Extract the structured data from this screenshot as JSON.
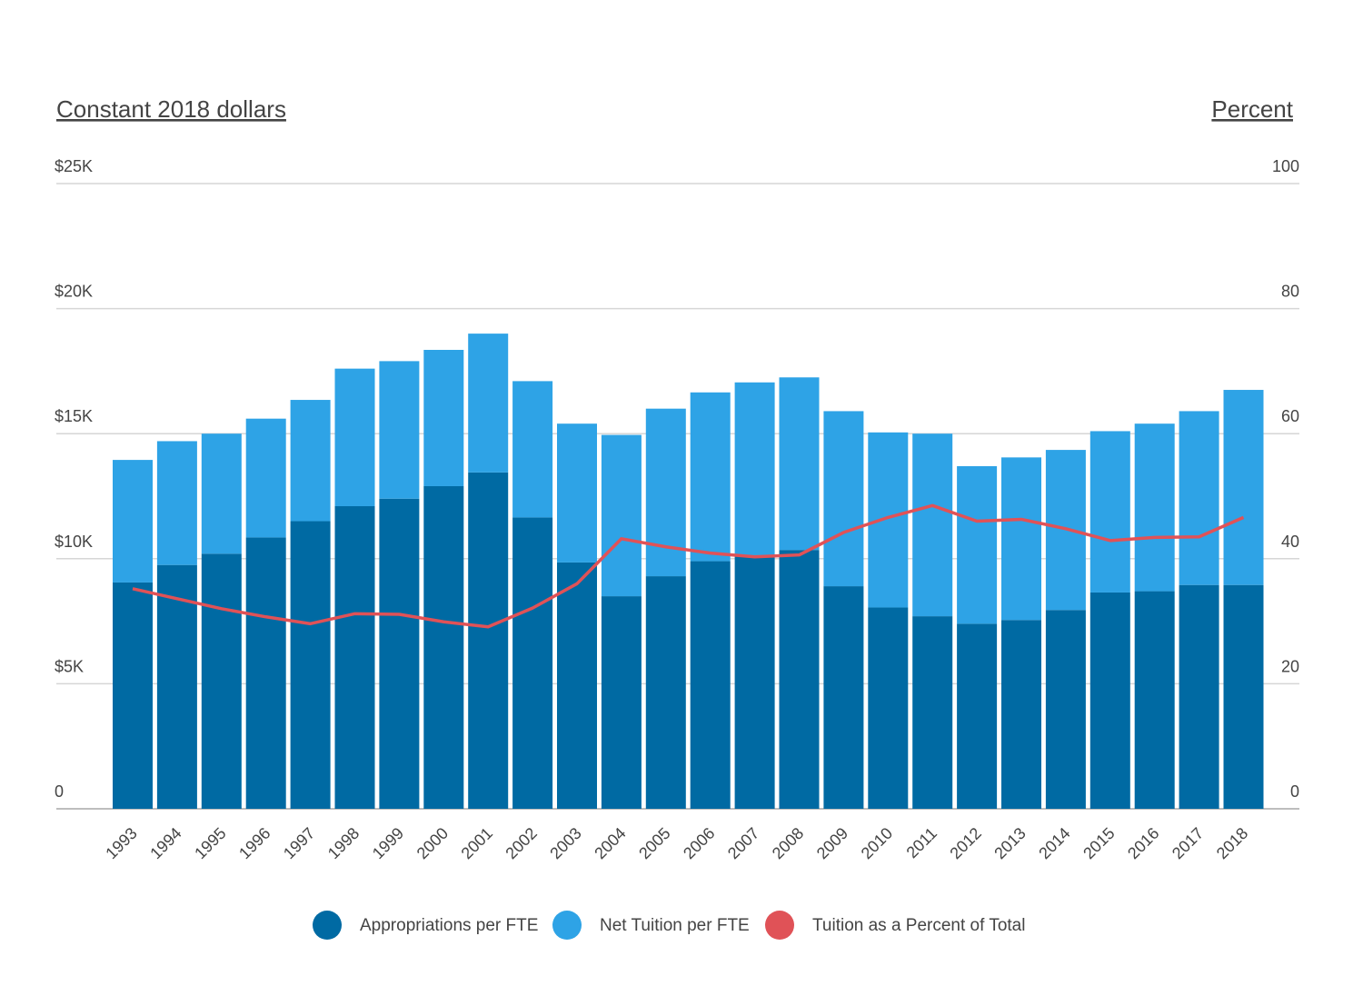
{
  "chart_data": {
    "type": "bar",
    "stacked": true,
    "left_axis_title": "Constant 2018 dollars",
    "right_axis_title": "Percent",
    "left_ticks": [
      "0",
      "$5K",
      "$10K",
      "$15K",
      "$20K",
      "$25K"
    ],
    "left_tick_values": [
      0,
      5000,
      10000,
      15000,
      20000,
      25000
    ],
    "right_ticks": [
      "0",
      "20",
      "40",
      "60",
      "80",
      "100"
    ],
    "right_tick_values": [
      0,
      20,
      40,
      60,
      80,
      100
    ],
    "ylim_left": [
      0,
      25000
    ],
    "ylim_right": [
      0,
      100
    ],
    "grid": true,
    "legend_position": "bottom",
    "categories": [
      "1993",
      "1994",
      "1995",
      "1996",
      "1997",
      "1998",
      "1999",
      "2000",
      "2001",
      "2002",
      "2003",
      "2004",
      "2005",
      "2006",
      "2007",
      "2008",
      "2009",
      "2010",
      "2011",
      "2012",
      "2013",
      "2014",
      "2015",
      "2016",
      "2017",
      "2018"
    ],
    "series": [
      {
        "name": "Appropriations per FTE",
        "type": "bar",
        "axis": "left",
        "color": "#006AA3",
        "values": [
          9050,
          9750,
          10200,
          10850,
          11500,
          12100,
          12400,
          12900,
          13450,
          11650,
          9850,
          8500,
          9300,
          9900,
          10150,
          10350,
          8900,
          8050,
          7700,
          7400,
          7550,
          7950,
          8650,
          8700,
          8950,
          8950
        ]
      },
      {
        "name": "Net Tuition per FTE",
        "type": "bar",
        "axis": "left",
        "color": "#2EA3E6",
        "values": [
          4900,
          4950,
          4800,
          4750,
          4850,
          5500,
          5500,
          5450,
          5550,
          5450,
          5550,
          6450,
          6700,
          6750,
          6900,
          6900,
          7000,
          7000,
          7300,
          6300,
          6500,
          6400,
          6450,
          6700,
          6950,
          7800
        ]
      },
      {
        "name": "Tuition as a Percent of Total",
        "type": "line",
        "axis": "right",
        "color": "#E05257",
        "values": [
          35.2,
          33.6,
          32.0,
          30.7,
          29.6,
          31.2,
          31.1,
          29.9,
          29.1,
          32.1,
          36.0,
          43.2,
          41.9,
          40.9,
          40.3,
          40.6,
          44.2,
          46.6,
          48.5,
          46.0,
          46.3,
          44.8,
          42.9,
          43.4,
          43.5,
          46.6
        ]
      }
    ]
  }
}
